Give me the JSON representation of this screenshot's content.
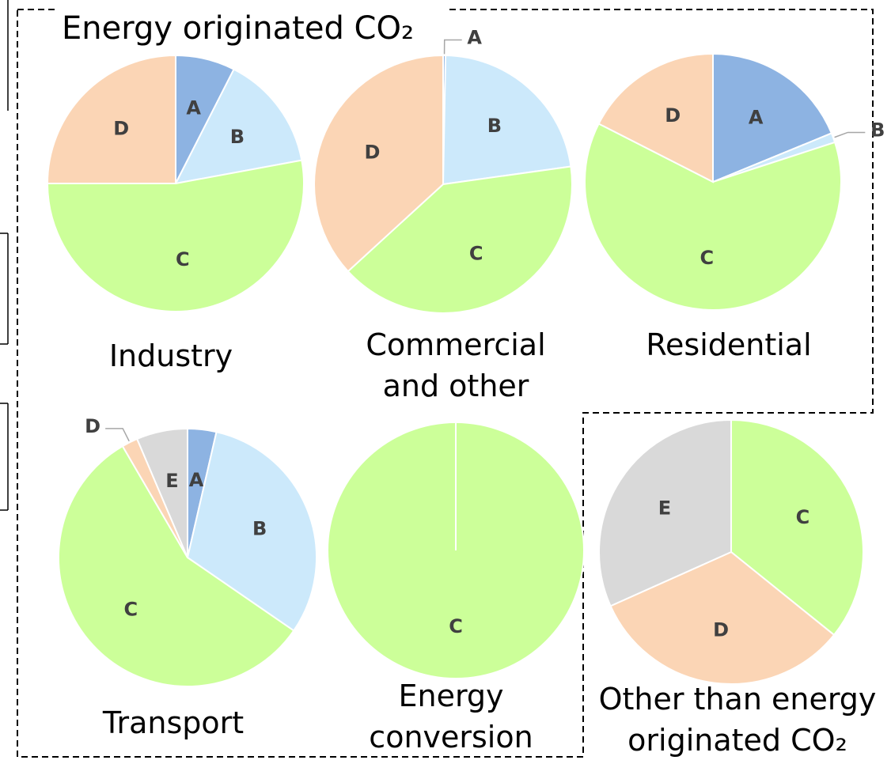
{
  "group_title": "Energy originated CO₂",
  "chart_data": [
    {
      "type": "pie",
      "title": "Industry",
      "categories": [
        "A",
        "B",
        "C",
        "D"
      ],
      "values": [
        7.5,
        14.6,
        52.9,
        25
      ],
      "colors": [
        "#8db3e2",
        "#cce9fb",
        "#ccff99",
        "#fbd5b5"
      ]
    },
    {
      "type": "pie",
      "title": "Commercial and other",
      "categories": [
        "A",
        "B",
        "C",
        "D"
      ],
      "values": [
        0.3,
        22.5,
        40.4,
        36.8
      ],
      "colors": [
        "#8db3e2",
        "#cce9fb",
        "#ccff99",
        "#fbd5b5"
      ]
    },
    {
      "type": "pie",
      "title": "Residential",
      "categories": [
        "A",
        "B",
        "C",
        "D"
      ],
      "values": [
        18.8,
        1.2,
        62.5,
        17.5
      ],
      "colors": [
        "#8db3e2",
        "#cce9fb",
        "#ccff99",
        "#fbd5b5"
      ]
    },
    {
      "type": "pie",
      "title": "Transport",
      "categories": [
        "A",
        "B",
        "C",
        "D",
        "E"
      ],
      "values": [
        3.6,
        31,
        57,
        2,
        6.4
      ],
      "colors": [
        "#8db3e2",
        "#cce9fb",
        "#ccff99",
        "#fbd5b5",
        "#d9d9d9"
      ]
    },
    {
      "type": "pie",
      "title": "Energy conversion",
      "categories": [
        "C"
      ],
      "values": [
        100
      ],
      "colors": [
        "#ccff99"
      ]
    },
    {
      "type": "pie",
      "title": "Other than energy originated CO₂",
      "categories": [
        "C",
        "D",
        "E"
      ],
      "values": [
        35.8,
        32.5,
        31.7
      ],
      "colors": [
        "#ccff99",
        "#fbd5b5",
        "#d9d9d9"
      ]
    }
  ]
}
